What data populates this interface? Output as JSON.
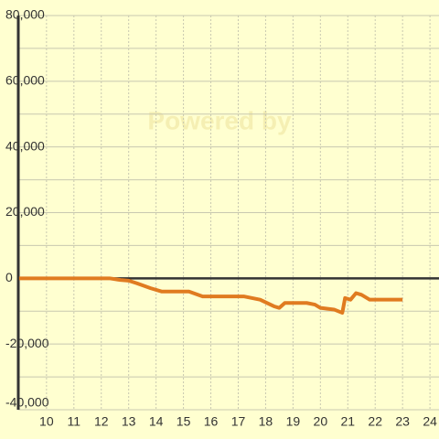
{
  "chart_data": {
    "type": "line",
    "watermark": "Powered by",
    "x": [
      9,
      12.3,
      12.7,
      13,
      13.3,
      13.8,
      14.2,
      15.2,
      15.7,
      17.2,
      17.8,
      18.3,
      18.5,
      18.7,
      19.5,
      19.8,
      20,
      20.5,
      20.8,
      20.9,
      21.1,
      21.3,
      21.5,
      21.8,
      22.2,
      23
    ],
    "series": [
      {
        "color": "#e07b20",
        "values": [
          0,
          0,
          -500,
          -700,
          -1500,
          -3000,
          -4000,
          -4000,
          -5500,
          -5500,
          -6500,
          -8500,
          -9000,
          -7500,
          -7500,
          -8000,
          -9000,
          -9500,
          -10500,
          -6000,
          -6500,
          -4500,
          -5000,
          -6500,
          -6500,
          -6500
        ]
      }
    ],
    "xlim": [
      8.97,
      24.33
    ],
    "xticks": [
      10,
      11,
      12,
      13,
      14,
      15,
      16,
      17,
      18,
      19,
      20,
      21,
      22,
      23,
      24
    ],
    "ylim": [
      -40000,
      80000
    ],
    "yticks": [
      {
        "value": -40000,
        "label": "-40,000"
      },
      {
        "value": -20000,
        "label": "-20,000"
      },
      0,
      {
        "value": 20000,
        "label": "20,000"
      },
      {
        "value": 40000,
        "label": "40,000"
      },
      {
        "value": 60000,
        "label": "60,000"
      },
      {
        "value": 80000,
        "label": "80,000"
      }
    ],
    "grid": true
  }
}
